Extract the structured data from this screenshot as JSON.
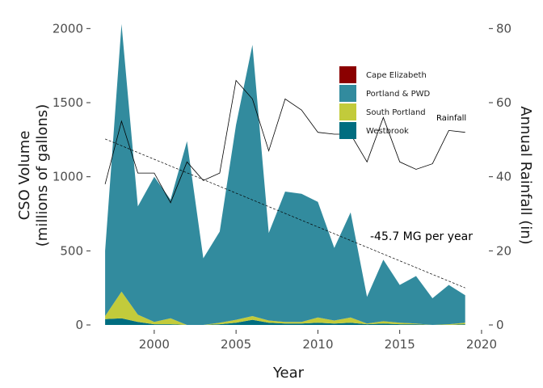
{
  "chart_data": {
    "type": "area",
    "xlabel": "Year",
    "ylabel_lines": [
      "CSO Volume",
      "(millions of gallons)"
    ],
    "ylabel2": "Annual Rainfall (in)",
    "xlim": [
      1996.6,
      2020.2
    ],
    "ylim": [
      0,
      2040
    ],
    "ylim2": [
      0,
      81.6
    ],
    "x_ticks": [
      2000,
      2005,
      2010,
      2015,
      2020
    ],
    "y_ticks": [
      0,
      500,
      1000,
      1500,
      2000
    ],
    "y2_ticks": [
      0,
      20,
      40,
      60,
      80
    ],
    "grid": false,
    "legend_position": "top-right inside",
    "years": [
      1997,
      1998,
      1999,
      2000,
      2001,
      2002,
      2003,
      2004,
      2005,
      2006,
      2007,
      2008,
      2009,
      2010,
      2011,
      2012,
      2013,
      2014,
      2015,
      2016,
      2017,
      2018,
      2019
    ],
    "series": [
      {
        "name": "Westbrook",
        "color": "#006d80",
        "values": [
          40,
          45,
          20,
          5,
          5,
          0,
          0,
          5,
          15,
          35,
          15,
          10,
          10,
          15,
          10,
          15,
          5,
          10,
          5,
          5,
          0,
          0,
          5
        ]
      },
      {
        "name": "South Portland",
        "color": "#c2cb3b",
        "values": [
          20,
          180,
          50,
          15,
          40,
          0,
          0,
          10,
          20,
          25,
          15,
          10,
          10,
          35,
          20,
          35,
          5,
          15,
          10,
          5,
          0,
          5,
          10
        ]
      },
      {
        "name": "Portland & PWD",
        "color": "#328b9e",
        "values": [
          440,
          1805,
          730,
          980,
          800,
          1240,
          450,
          615,
          1315,
          1830,
          590,
          880,
          865,
          780,
          490,
          710,
          180,
          415,
          255,
          320,
          180,
          265,
          185
        ]
      },
      {
        "name": "Cape Elizabeth",
        "color": "#8b0000",
        "values": [
          0,
          0,
          0,
          0,
          0,
          0,
          0,
          0,
          0,
          0,
          0,
          0,
          0,
          0,
          0,
          0,
          0,
          0,
          0,
          0,
          0,
          0,
          0
        ]
      }
    ],
    "rainfall": {
      "label": "Rainfall",
      "values": [
        38,
        55,
        41,
        41,
        33,
        44,
        39,
        41,
        66,
        61,
        47,
        61,
        58,
        52,
        51.5,
        51.5,
        44,
        56,
        44,
        42,
        43.5,
        52.5,
        52
      ]
    },
    "trend": {
      "label": "-45.7 MG per year",
      "slope": -45.7,
      "start": [
        1997,
        1255
      ],
      "end": [
        2019,
        250
      ]
    }
  }
}
